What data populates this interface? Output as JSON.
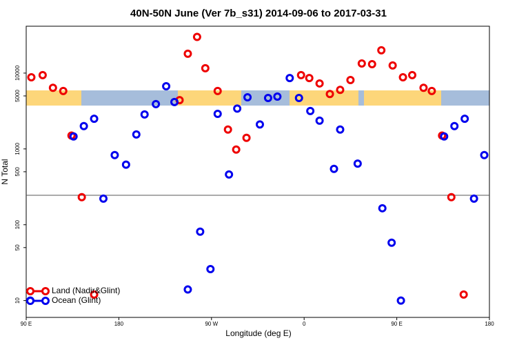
{
  "chart_data": {
    "type": "scatter",
    "title": "40N-50N June (Ver 7b_s31)   2014-09-06 to 2017-03-31",
    "x_label": "Longitude (deg E)",
    "y_label": "N Total",
    "log_y": true,
    "xlim": [
      90,
      540
    ],
    "ylim": [
      6,
      41500
    ],
    "xticks": [
      {
        "value": 90,
        "label": "90 E"
      },
      180,
      {
        "value": 270,
        "label": "90 W"
      },
      {
        "value": 360,
        "label": "0"
      },
      {
        "value": 450,
        "label": "90 E"
      },
      {
        "value": 540,
        "label": "180"
      }
    ],
    "yticks": [
      10,
      50,
      100,
      500,
      1000,
      5000,
      10000
    ],
    "hline": 245,
    "legend": "bottom-left",
    "series": [
      {
        "name": "Land (Nadir&Glint)",
        "color": "#ee0000",
        "x": [
          95,
          106,
          116,
          126,
          134,
          144,
          156,
          239,
          247,
          256,
          264,
          276,
          286,
          294,
          304,
          357,
          365,
          375,
          385,
          395,
          405,
          416,
          426,
          435,
          446,
          456,
          465,
          476,
          484,
          494,
          503,
          515
        ],
        "values": [
          8800,
          9400,
          6400,
          5800,
          1500,
          231,
          12,
          4400,
          18000,
          30000,
          11600,
          5800,
          1800,
          980,
          1400,
          9400,
          8600,
          7300,
          5300,
          6000,
          8100,
          13400,
          13100,
          20000,
          12600,
          8800,
          9400,
          6400,
          5800,
          1500,
          231,
          12
        ]
      },
      {
        "name": "Ocean (Glint)",
        "color": "#0000ee",
        "x": [
          94,
          136,
          146,
          156,
          165,
          176,
          187,
          197,
          205,
          216,
          226,
          234,
          247,
          259,
          269,
          276,
          287,
          295,
          305,
          317,
          325,
          334,
          346,
          355,
          366,
          375,
          389,
          395,
          412,
          436,
          445,
          454,
          496,
          506,
          516,
          525,
          535
        ],
        "values": [
          10,
          1460,
          2000,
          2500,
          221,
          830,
          620,
          1550,
          2850,
          3900,
          6700,
          4150,
          14,
          81,
          26,
          2900,
          460,
          3400,
          4800,
          2100,
          4700,
          4900,
          8600,
          4700,
          3160,
          2360,
          545,
          1800,
          640,
          165,
          58,
          10,
          1460,
          2000,
          2500,
          221,
          830
        ]
      }
    ]
  }
}
